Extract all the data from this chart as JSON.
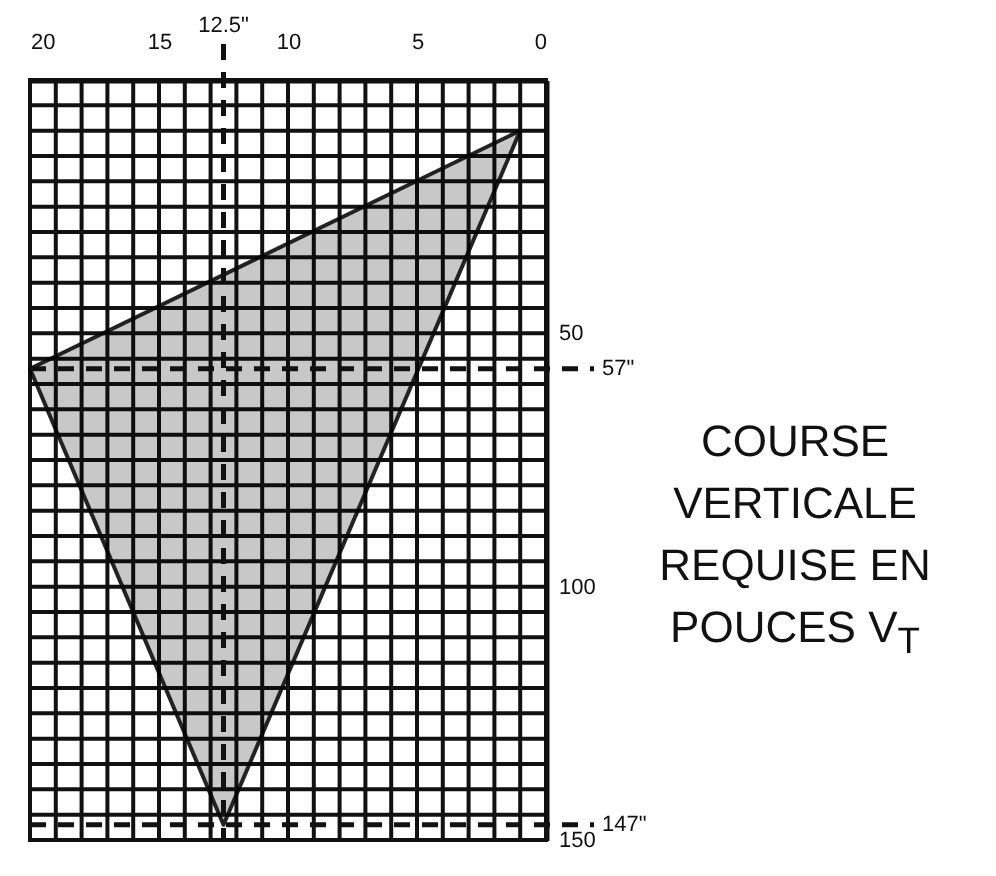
{
  "chart_data": {
    "type": "area",
    "ylabel": "COURSE VERTICALE REQUISE EN POUCES V$_{T}$",
    "xlim": [
      20,
      0
    ],
    "ylim": [
      150,
      0
    ],
    "xticks": [
      0,
      {
        "value": 1,
        "label": null
      },
      {
        "value": 2,
        "label": null
      },
      {
        "value": 3,
        "label": null
      },
      {
        "value": 4,
        "label": null
      },
      5,
      {
        "value": 6,
        "label": null
      },
      {
        "value": 7,
        "label": null
      },
      {
        "value": 8,
        "label": null
      },
      {
        "value": 9,
        "label": null
      },
      10,
      {
        "value": 11,
        "label": null
      },
      {
        "value": 12,
        "label": null
      },
      {
        "value": 13,
        "label": null
      },
      {
        "value": 14,
        "label": null
      },
      15,
      {
        "value": 16,
        "label": null
      },
      {
        "value": 17,
        "label": null
      },
      {
        "value": 18,
        "label": null
      },
      {
        "value": 19,
        "label": null
      },
      20
    ],
    "yticks": [
      {
        "value": 5,
        "label": null
      },
      {
        "value": 10,
        "label": null
      },
      {
        "value": 15,
        "label": null
      },
      {
        "value": 20,
        "label": null
      },
      {
        "value": 25,
        "label": null
      },
      {
        "value": 30,
        "label": null
      },
      {
        "value": 35,
        "label": null
      },
      {
        "value": 40,
        "label": null
      },
      {
        "value": 45,
        "label": null
      },
      50,
      {
        "value": 55,
        "label": null
      },
      {
        "value": 60,
        "label": null
      },
      {
        "value": 65,
        "label": null
      },
      {
        "value": 70,
        "label": null
      },
      {
        "value": 75,
        "label": null
      },
      {
        "value": 80,
        "label": null
      },
      {
        "value": 85,
        "label": null
      },
      {
        "value": 90,
        "label": null
      },
      {
        "value": 95,
        "label": null
      },
      100,
      {
        "value": 105,
        "label": null
      },
      {
        "value": 110,
        "label": null
      },
      {
        "value": 115,
        "label": null
      },
      {
        "value": 120,
        "label": null
      },
      {
        "value": 125,
        "label": null
      },
      {
        "value": 130,
        "label": null
      },
      {
        "value": 135,
        "label": null
      },
      {
        "value": 140,
        "label": null
      },
      {
        "value": 145,
        "label": null
      },
      150
    ],
    "grid": true,
    "series": [
      {
        "color": "#c8c8c8",
        "x": [
          1,
          20,
          12.5,
          1
        ],
        "values": [
          10,
          57,
          147,
          10
        ]
      }
    ],
    "ref_lines": [
      {
        "axis": "x",
        "value": 12.5,
        "label": "12.5\"",
        "line_style": "dashed"
      },
      {
        "axis": "y",
        "value": 57,
        "label": "57\"",
        "line_style": "dashed"
      },
      {
        "axis": "y",
        "value": 147,
        "label": "147\"",
        "line_style": "dashed"
      }
    ]
  }
}
